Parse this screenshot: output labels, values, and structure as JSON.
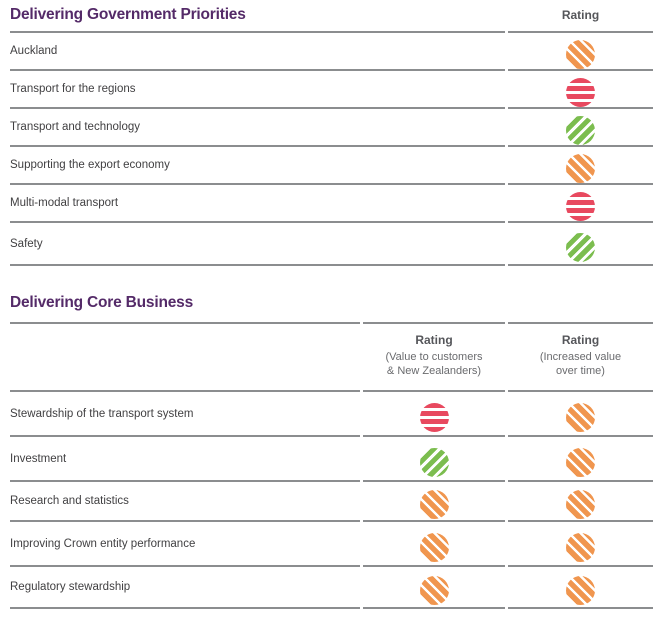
{
  "colors": {
    "purple": "#542A68",
    "amber": "#F0964F",
    "red": "#E8495F",
    "green": "#7CBD4F",
    "line": "#8B8D8F",
    "text": "#414042"
  },
  "section1": {
    "title": "Delivering Government Priorities",
    "rating_header": "Rating",
    "rows": [
      {
        "label": "Auckland",
        "rating": "amber"
      },
      {
        "label": "Transport for the regions",
        "rating": "red"
      },
      {
        "label": "Transport and technology",
        "rating": "green"
      },
      {
        "label": "Supporting the export economy",
        "rating": "amber"
      },
      {
        "label": "Multi-modal transport",
        "rating": "red"
      },
      {
        "label": "Safety",
        "rating": "green"
      }
    ]
  },
  "section2": {
    "title": "Delivering Core Business",
    "columns": [
      {
        "header": "Rating",
        "sub_line1": "(Value to customers",
        "sub_line2": "& New Zealanders)"
      },
      {
        "header": "Rating",
        "sub_line1": "(Increased value",
        "sub_line2": "over time)"
      }
    ],
    "rows": [
      {
        "label": "Stewardship of the transport system",
        "ratings": [
          "red",
          "amber"
        ]
      },
      {
        "label": "Investment",
        "ratings": [
          "green",
          "amber"
        ]
      },
      {
        "label": "Research and statistics",
        "ratings": [
          "amber",
          "amber"
        ]
      },
      {
        "label": "Improving Crown entity performance",
        "ratings": [
          "amber",
          "amber"
        ]
      },
      {
        "label": "Regulatory stewardship",
        "ratings": [
          "amber",
          "amber"
        ]
      }
    ]
  }
}
